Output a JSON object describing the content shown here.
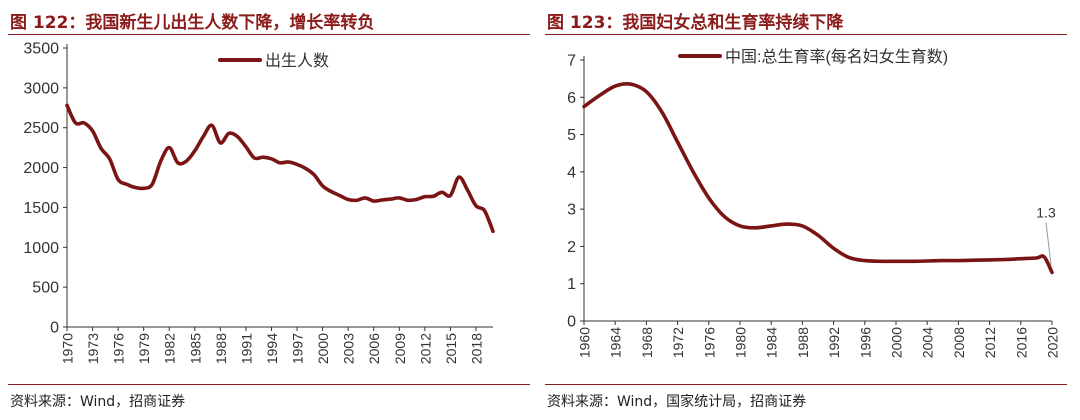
{
  "charts": [
    {
      "title": "图 122：我国新生儿出生人数下降，增长率转负",
      "source": "资料来源：Wind，招商证券",
      "legend": "出生人数",
      "color": "#7b1414"
    },
    {
      "title": "图 123：我国妇女总和生育率持续下降",
      "source": "资料来源：Wind，国家统计局，招商证券",
      "legend": "中国:总生育率(每名妇女生育数)",
      "color": "#7b1414",
      "annotation": "1.3"
    }
  ],
  "chart_data": [
    {
      "type": "line",
      "title": "",
      "xlabel": "",
      "ylabel": "",
      "ylim": [
        0,
        3500
      ],
      "yticks": [
        0,
        500,
        1000,
        1500,
        2000,
        2500,
        3000,
        3500
      ],
      "xticks": [
        "1970",
        "1973",
        "1976",
        "1979",
        "1982",
        "1985",
        "1988",
        "1991",
        "1994",
        "1997",
        "2000",
        "2003",
        "2006",
        "2009",
        "2012",
        "2015",
        "2018"
      ],
      "legend_position": "top-center",
      "grid": false,
      "series": [
        {
          "name": "出生人数",
          "x": [
            1970,
            1971,
            1972,
            1973,
            1974,
            1975,
            1976,
            1977,
            1978,
            1979,
            1980,
            1981,
            1982,
            1983,
            1984,
            1985,
            1986,
            1987,
            1988,
            1989,
            1990,
            1991,
            1992,
            1993,
            1994,
            1995,
            1996,
            1997,
            1998,
            1999,
            2000,
            2001,
            2002,
            2003,
            2004,
            2005,
            2006,
            2007,
            2008,
            2009,
            2010,
            2011,
            2012,
            2013,
            2014,
            2015,
            2016,
            2017,
            2018,
            2019,
            2020
          ],
          "values": [
            2780,
            2560,
            2560,
            2460,
            2240,
            2110,
            1850,
            1790,
            1750,
            1740,
            1790,
            2080,
            2250,
            2060,
            2080,
            2210,
            2390,
            2530,
            2310,
            2430,
            2390,
            2260,
            2120,
            2130,
            2110,
            2060,
            2070,
            2040,
            1990,
            1910,
            1770,
            1700,
            1650,
            1600,
            1590,
            1620,
            1580,
            1595,
            1605,
            1620,
            1590,
            1600,
            1635,
            1640,
            1690,
            1650,
            1880,
            1720,
            1520,
            1460,
            1200
          ]
        }
      ]
    },
    {
      "type": "line",
      "title": "",
      "xlabel": "",
      "ylabel": "",
      "ylim": [
        0,
        7
      ],
      "yticks": [
        0,
        1,
        2,
        3,
        4,
        5,
        6,
        7
      ],
      "xticks": [
        "1960",
        "1964",
        "1968",
        "1972",
        "1976",
        "1980",
        "1984",
        "1988",
        "1992",
        "1996",
        "2000",
        "2004",
        "2008",
        "2012",
        "2016",
        "2020"
      ],
      "legend_position": "top-center",
      "grid": false,
      "series": [
        {
          "name": "中国:总生育率(每名妇女生育数)",
          "x": [
            1960,
            1962,
            1964,
            1966,
            1968,
            1970,
            1972,
            1974,
            1976,
            1978,
            1980,
            1982,
            1984,
            1986,
            1988,
            1990,
            1992,
            1994,
            1996,
            1998,
            2000,
            2002,
            2004,
            2006,
            2008,
            2010,
            2012,
            2014,
            2016,
            2018,
            2019,
            2020
          ],
          "values": [
            5.75,
            6.05,
            6.3,
            6.35,
            6.15,
            5.6,
            4.8,
            4.0,
            3.3,
            2.8,
            2.55,
            2.5,
            2.55,
            2.6,
            2.55,
            2.3,
            1.95,
            1.7,
            1.62,
            1.6,
            1.6,
            1.6,
            1.61,
            1.62,
            1.62,
            1.63,
            1.64,
            1.65,
            1.67,
            1.69,
            1.72,
            1.3
          ]
        }
      ],
      "annotations": [
        {
          "x": 2020,
          "y": 1.3,
          "text": "1.3"
        }
      ]
    }
  ]
}
